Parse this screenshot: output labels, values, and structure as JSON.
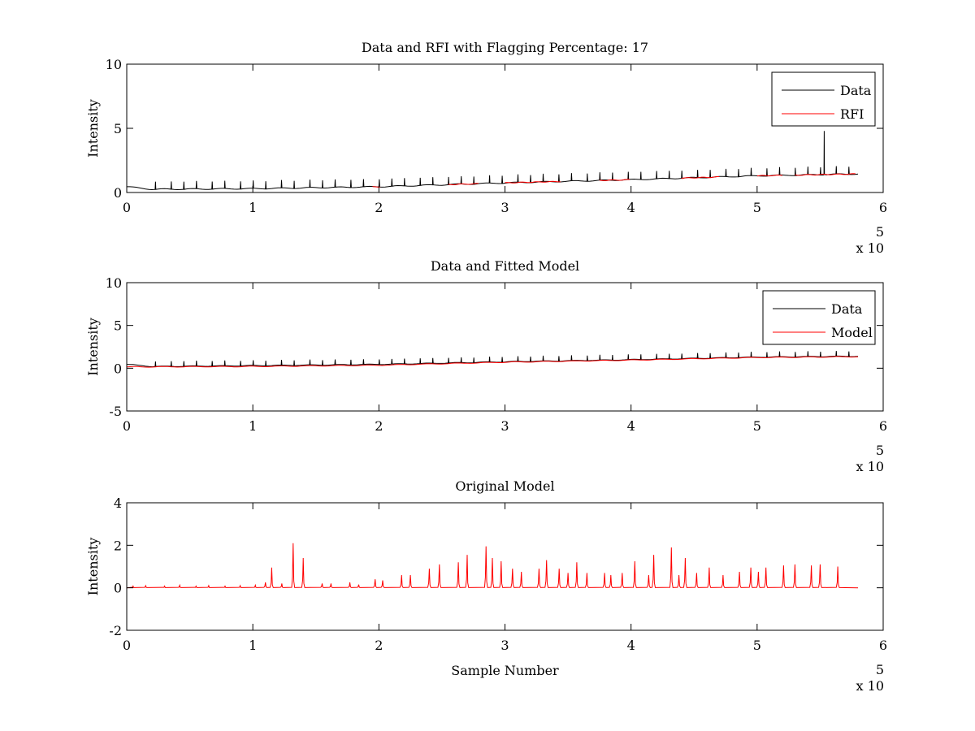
{
  "chart_data": [
    {
      "type": "line",
      "title": "Data and RFI with Flagging Percentage: 17",
      "xlabel": "",
      "ylabel": "Intensity",
      "xlim": [
        0,
        600000
      ],
      "ylim": [
        0,
        10
      ],
      "xticks": [
        "0",
        "1",
        "2",
        "3",
        "4",
        "5",
        "6"
      ],
      "yticks": [
        "0",
        "5",
        "10"
      ],
      "x_exponent": {
        "base": "x 10",
        "power": "5"
      },
      "legend": [
        "Data",
        "RFI"
      ],
      "legend_position": "top-right",
      "series": [
        {
          "name": "Data",
          "color": "#000000",
          "baseline": {
            "x": [
              0,
              20000,
              100000,
              200000,
              300000,
              400000,
              500000,
              580000
            ],
            "y": [
              0.45,
              0.25,
              0.3,
              0.45,
              0.75,
              1.0,
              1.3,
              1.45
            ]
          },
          "spike_spacing": 11000,
          "spike_height": 0.6,
          "large_spike": {
            "x": 553000,
            "y": 4.8
          }
        },
        {
          "name": "RFI",
          "color": "#ff0000",
          "segments": [
            [
              195000,
              202000
            ],
            [
              255000,
              280000
            ],
            [
              300000,
              345000
            ],
            [
              375000,
              400000
            ],
            [
              440000,
              470000
            ],
            [
              500000,
              520000
            ],
            [
              530000,
              578000
            ]
          ]
        }
      ]
    },
    {
      "type": "line",
      "title": "Data and Fitted Model",
      "xlabel": "",
      "ylabel": "Intensity",
      "xlim": [
        0,
        600000
      ],
      "ylim": [
        -5,
        10
      ],
      "xticks": [
        "0",
        "1",
        "2",
        "3",
        "4",
        "5",
        "6"
      ],
      "yticks": [
        "-5",
        "0",
        "5",
        "10"
      ],
      "x_exponent": {
        "base": "x 10",
        "power": "5"
      },
      "legend": [
        "Data",
        "Model"
      ],
      "legend_position": "top-right",
      "series": [
        {
          "name": "Data",
          "color": "#000000",
          "baseline": {
            "x": [
              0,
              20000,
              100000,
              200000,
              300000,
              400000,
              500000,
              580000
            ],
            "y": [
              0.45,
              0.2,
              0.3,
              0.45,
              0.75,
              1.0,
              1.3,
              1.4
            ]
          },
          "spike_spacing": 11000,
          "spike_height": 0.6
        },
        {
          "name": "Model",
          "color": "#ff0000",
          "baseline": {
            "x": [
              0,
              100000,
              200000,
              300000,
              400000,
              500000,
              580000
            ],
            "y": [
              0.15,
              0.2,
              0.35,
              0.7,
              0.95,
              1.25,
              1.35
            ]
          }
        }
      ]
    },
    {
      "type": "line",
      "title": "Original Model",
      "xlabel": "Sample Number",
      "ylabel": "Intensity",
      "xlim": [
        0,
        600000
      ],
      "ylim": [
        -2,
        4
      ],
      "xticks": [
        "0",
        "1",
        "2",
        "3",
        "4",
        "5",
        "6"
      ],
      "yticks": [
        "-2",
        "0",
        "2",
        "4"
      ],
      "x_exponent": {
        "base": "x 10",
        "power": "5"
      },
      "series": [
        {
          "name": "Original Model",
          "color": "#ff0000",
          "x_end": 580000,
          "peaks": [
            [
              5000,
              0.08
            ],
            [
              15000,
              0.1
            ],
            [
              30000,
              0.08
            ],
            [
              42000,
              0.12
            ],
            [
              55000,
              0.08
            ],
            [
              65000,
              0.1
            ],
            [
              78000,
              0.08
            ],
            [
              90000,
              0.1
            ],
            [
              102000,
              0.12
            ],
            [
              110000,
              0.25
            ],
            [
              115000,
              0.95
            ],
            [
              123000,
              0.2
            ],
            [
              132000,
              2.1
            ],
            [
              140000,
              1.4
            ],
            [
              155000,
              0.2
            ],
            [
              162000,
              0.2
            ],
            [
              177000,
              0.25
            ],
            [
              184000,
              0.15
            ],
            [
              197000,
              0.4
            ],
            [
              203000,
              0.35
            ],
            [
              218000,
              0.6
            ],
            [
              225000,
              0.6
            ],
            [
              240000,
              0.9
            ],
            [
              248000,
              1.1
            ],
            [
              263000,
              1.2
            ],
            [
              270000,
              1.55
            ],
            [
              285000,
              1.95
            ],
            [
              290000,
              1.4
            ],
            [
              297000,
              1.25
            ],
            [
              306000,
              0.9
            ],
            [
              313000,
              0.75
            ],
            [
              327000,
              0.9
            ],
            [
              333000,
              1.3
            ],
            [
              343000,
              0.9
            ],
            [
              350000,
              0.7
            ],
            [
              357000,
              1.2
            ],
            [
              365000,
              0.7
            ],
            [
              379000,
              0.7
            ],
            [
              384000,
              0.6
            ],
            [
              393000,
              0.7
            ],
            [
              403000,
              1.25
            ],
            [
              414000,
              0.6
            ],
            [
              418000,
              1.55
            ],
            [
              432000,
              1.9
            ],
            [
              438000,
              0.6
            ],
            [
              443000,
              1.4
            ],
            [
              452000,
              0.7
            ],
            [
              462000,
              0.95
            ],
            [
              473000,
              0.6
            ],
            [
              486000,
              0.75
            ],
            [
              495000,
              0.95
            ],
            [
              501000,
              0.75
            ],
            [
              507000,
              0.95
            ],
            [
              521000,
              1.05
            ],
            [
              530000,
              1.1
            ],
            [
              543000,
              1.05
            ],
            [
              550000,
              1.1
            ],
            [
              564000,
              1.0
            ]
          ]
        }
      ]
    }
  ]
}
